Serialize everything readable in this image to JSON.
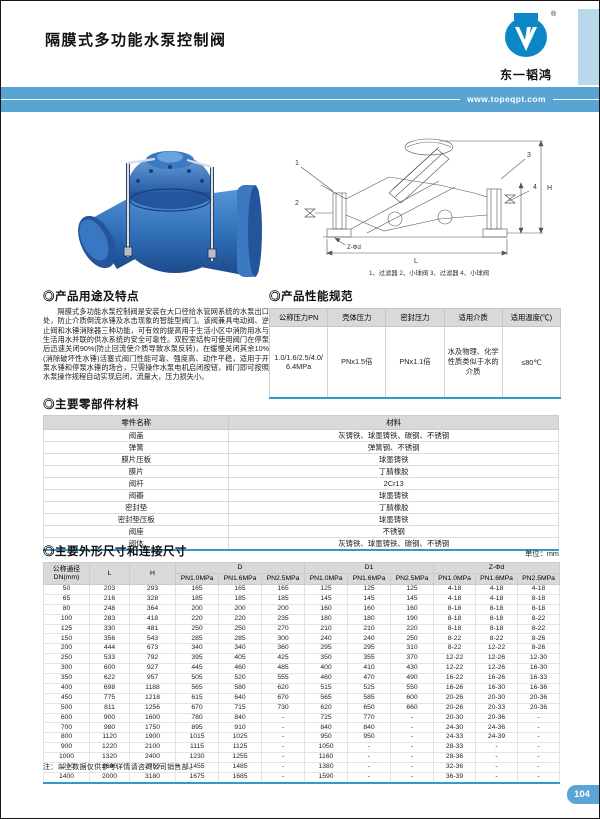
{
  "header": {
    "title": "隔膜式多功能水泵控制阀",
    "brand_name": "东一韬鸿",
    "registered_mark": "®",
    "website": "www.topeqpt.com"
  },
  "drawing": {
    "caption": "1、过滤器 2、小球阀 3、过滤器 4、小球阀",
    "dim_h": "H",
    "dim_l": "L",
    "dim_z": "Z-Φd",
    "callouts": [
      "1",
      "2",
      "3",
      "4"
    ]
  },
  "usage": {
    "title": "◎产品用途及特点",
    "body": "隔膜式多功能水泵控制阀是安装在大口径给水管网系统的水泵出口处，防止介质倒流水锤及水击现象的智能型阀门。该阀兼具电动阀、逆止阀和水锤消除器三种功能，可有效的提高用于生活小区中消防用水与生活用水并联的供水系统的安全可靠性。双腔室结构可使用阀门在停泵后迅速关闭90%(防止回流使介质导致水泵反转)，在缓慢关闭其余10%(消除破坏性水锤)活塞式阀门性能可靠、强度高、动作平稳，适用于开泵水锤和停泵水锤的场合，只需操作水泵电机启闭按钮，阀门即可按照水泵操作规程自动实现启闭，流量大，压力损失小。"
  },
  "performance": {
    "title": "◎产品性能规范",
    "headers": [
      "公称压力PN",
      "壳体压力",
      "密封压力",
      "适用介质",
      "适用温度(℃)"
    ],
    "rows": [
      [
        "1.0/1.6/2.5/4.0/6.4MPa",
        "PNx1.5倍",
        "PNx1.1倍",
        "水及物理、化学性质类似于水的介质",
        "≤80℃"
      ]
    ]
  },
  "materials": {
    "title": "◎主要零部件材料",
    "headers": {
      "part": "零件名称",
      "material": "材料"
    },
    "rows": [
      [
        "阀盖",
        "灰铸铁、球墨铸铁、碳钢、不锈钢"
      ],
      [
        "弹簧",
        "弹簧钢、不锈钢"
      ],
      [
        "膜片压板",
        "球墨铸铁"
      ],
      [
        "膜片",
        "丁腈橡胶"
      ],
      [
        "阀杆",
        "2Cr13"
      ],
      [
        "阀瓣",
        "球墨铸铁"
      ],
      [
        "密封垫",
        "丁腈橡胶"
      ],
      [
        "密封垫压板",
        "球墨铸铁"
      ],
      [
        "阀座",
        "不锈钢"
      ],
      [
        "阀体",
        "灰铸铁、球墨铸铁、碳钢、不锈钢"
      ]
    ]
  },
  "dimensions": {
    "title": "◎主要外形尺寸和连接尺寸",
    "unit_note": "单位：mm",
    "group_headers": {
      "dn1": "公称通径",
      "dn2": "DN(mm)",
      "l": "L",
      "h": "H",
      "d": "D",
      "d1": "D1",
      "z": "Z-Φd"
    },
    "pn_headers": [
      "PN1.0MPa",
      "PN1.6MPa",
      "PN2.5MPa",
      "PN1.0MPa",
      "PN1.6MPa",
      "PN2.5MPa",
      "PN1.0MPa",
      "PN1.6MPa",
      "PN2.5MPa"
    ],
    "rows": [
      [
        "50",
        "203",
        "293",
        "165",
        "165",
        "165",
        "125",
        "125",
        "125",
        "4-18",
        "4-18",
        "4-18"
      ],
      [
        "65",
        "216",
        "328",
        "185",
        "185",
        "185",
        "145",
        "145",
        "145",
        "4-18",
        "4-18",
        "8-18"
      ],
      [
        "80",
        "248",
        "364",
        "200",
        "200",
        "200",
        "160",
        "160",
        "160",
        "8-18",
        "8-18",
        "8-18"
      ],
      [
        "100",
        "283",
        "418",
        "220",
        "220",
        "235",
        "180",
        "180",
        "190",
        "8-18",
        "8-18",
        "8-22"
      ],
      [
        "125",
        "330",
        "481",
        "250",
        "250",
        "270",
        "210",
        "210",
        "220",
        "8-18",
        "8-18",
        "8-22"
      ],
      [
        "150",
        "356",
        "543",
        "285",
        "285",
        "300",
        "240",
        "240",
        "250",
        "8-22",
        "8-22",
        "8-26"
      ],
      [
        "200",
        "444",
        "673",
        "340",
        "340",
        "360",
        "295",
        "295",
        "310",
        "8-22",
        "12-22",
        "8-26"
      ],
      [
        "250",
        "533",
        "792",
        "395",
        "405",
        "425",
        "350",
        "355",
        "370",
        "12-22",
        "12-26",
        "12-30"
      ],
      [
        "300",
        "600",
        "927",
        "445",
        "460",
        "485",
        "400",
        "410",
        "430",
        "12-22",
        "12-26",
        "16-30"
      ],
      [
        "350",
        "622",
        "957",
        "505",
        "520",
        "555",
        "460",
        "470",
        "490",
        "16-22",
        "16-26",
        "16-33"
      ],
      [
        "400",
        "698",
        "1188",
        "565",
        "580",
        "620",
        "515",
        "525",
        "550",
        "16-26",
        "16-30",
        "16-36"
      ],
      [
        "450",
        "775",
        "1218",
        "615",
        "640",
        "670",
        "565",
        "585",
        "600",
        "20-26",
        "20-30",
        "20-36"
      ],
      [
        "500",
        "811",
        "1256",
        "670",
        "715",
        "730",
        "620",
        "650",
        "660",
        "20-26",
        "20-33",
        "20-36"
      ],
      [
        "600",
        "900",
        "1600",
        "780",
        "840",
        "-",
        "725",
        "770",
        "-",
        "20-30",
        "20-36",
        "-"
      ],
      [
        "700",
        "980",
        "1750",
        "895",
        "910",
        "-",
        "840",
        "840",
        "-",
        "24-30",
        "24-36",
        "-"
      ],
      [
        "800",
        "1120",
        "1900",
        "1015",
        "1025",
        "-",
        "950",
        "950",
        "-",
        "24-33",
        "24-39",
        "-"
      ],
      [
        "900",
        "1220",
        "2100",
        "1115",
        "1125",
        "-",
        "1050",
        "-",
        "-",
        "28-33",
        "-",
        "-"
      ],
      [
        "1000",
        "1320",
        "2400",
        "1230",
        "1255",
        "-",
        "1160",
        "-",
        "-",
        "28-36",
        "-",
        "-"
      ],
      [
        "1200",
        "1600",
        "2750",
        "1455",
        "1485",
        "-",
        "1380",
        "-",
        "-",
        "32-36",
        "-",
        "-"
      ],
      [
        "1400",
        "2000",
        "3180",
        "1675",
        "1685",
        "-",
        "1590",
        "-",
        "-",
        "36-39",
        "-",
        "-"
      ]
    ],
    "note": "注：以上数据仅供参考详情请咨询公司销售部。"
  },
  "footer": {
    "page_number": "104"
  },
  "colors": {
    "banner_blue": "#58a4d3",
    "logo_blue": "#0d86c6",
    "table_header_gray": "#d9d9d9",
    "rule_blue": "#3399cc",
    "valve_blue": "#2f6db5"
  }
}
